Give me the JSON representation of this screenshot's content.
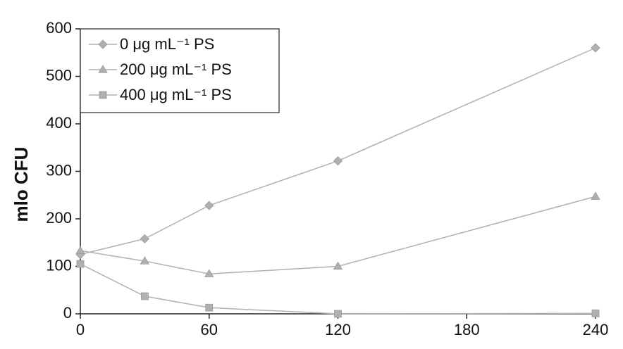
{
  "chart_data": {
    "type": "line",
    "y_label": "mlo CFU",
    "x": [
      0,
      30,
      60,
      120,
      240
    ],
    "series": [
      {
        "name": "0 μg mL⁻¹ PS",
        "color": "#b0b0b0",
        "marker": "diamond",
        "values": [
          125,
          158,
          228,
          322,
          560
        ]
      },
      {
        "name": "200 μg mL⁻¹ PS",
        "color": "#b0b0b0",
        "marker": "triangle",
        "values": [
          133,
          111,
          84,
          100,
          247
        ]
      },
      {
        "name": "400 μg mL⁻¹ PS",
        "color": "#b0b0b0",
        "marker": "square",
        "values": [
          105,
          37,
          13,
          0,
          1
        ]
      }
    ],
    "xlim": [
      0,
      240
    ],
    "xticks": [
      0,
      60,
      120,
      180,
      240
    ],
    "ylim": [
      0,
      600
    ],
    "yticks": [
      0,
      100,
      200,
      300,
      400,
      500,
      600
    ],
    "legend": "upper left"
  }
}
